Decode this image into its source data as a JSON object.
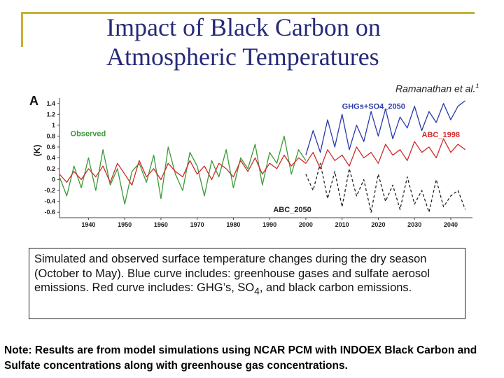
{
  "slide": {
    "title_line1": "Impact of Black Carbon on",
    "title_line2": "Atmospheric Temperatures",
    "credit": "Ramanathan et al.",
    "credit_sup": "1",
    "caption_part1": "Simulated and observed surface temperature changes during the dry season (October to May).  Blue curve includes: greenhouse gases and sulfate aerosol emissions. Red curve includes: GHG’s, SO",
    "caption_sub": "4",
    "caption_part2": ", and black carbon emissions.",
    "note": "Note: Results are from model simulations using NCAR PCM with INDOEX Black Carbon and Sulfate concentrations along with greenhouse gas concentrations."
  },
  "chart_data": {
    "type": "line",
    "panel_label": "A",
    "ylabel": "(K)",
    "xlim": [
      1932,
      2046
    ],
    "ylim": [
      -0.7,
      1.5
    ],
    "x_ticks": [
      1940,
      1950,
      1960,
      1970,
      1980,
      1990,
      2000,
      2010,
      2020,
      2030,
      2040
    ],
    "y_ticks": [
      1.4,
      1.2,
      1.0,
      0.8,
      0.6,
      0.4,
      0.2,
      0,
      -0.2,
      -0.4,
      -0.6
    ],
    "y_tick_labels": [
      "1.4",
      "1.2",
      "1",
      "0.8",
      "0.6",
      "0.4",
      "0.2",
      "0",
      "-0.2",
      "-0.4",
      "-0.6"
    ],
    "series": [
      {
        "name": "Observed",
        "color": "#3a9a35",
        "dash": "",
        "x": [
          1932,
          1934,
          1936,
          1938,
          1940,
          1942,
          1944,
          1946,
          1948,
          1950,
          1952,
          1954,
          1956,
          1958,
          1960,
          1962,
          1964,
          1966,
          1968,
          1970,
          1972,
          1974,
          1976,
          1978,
          1980,
          1982,
          1984,
          1986,
          1988,
          1990,
          1992,
          1994,
          1996,
          1998,
          2000
        ],
        "y": [
          0.05,
          -0.3,
          0.25,
          -0.15,
          0.4,
          -0.2,
          0.55,
          -0.1,
          0.2,
          -0.45,
          0.15,
          0.3,
          -0.05,
          0.45,
          -0.35,
          0.6,
          0.1,
          -0.2,
          0.5,
          0.25,
          -0.3,
          0.35,
          0.05,
          0.55,
          -0.15,
          0.4,
          0.2,
          0.65,
          -0.1,
          0.5,
          0.3,
          0.8,
          0.1,
          0.55,
          0.35
        ]
      },
      {
        "name": "ABC_1998",
        "color": "#d02a2a",
        "dash": "",
        "x": [
          1932,
          1934,
          1936,
          1938,
          1940,
          1942,
          1944,
          1946,
          1948,
          1950,
          1952,
          1954,
          1956,
          1958,
          1960,
          1962,
          1964,
          1966,
          1968,
          1970,
          1972,
          1974,
          1976,
          1978,
          1980,
          1982,
          1984,
          1986,
          1988,
          1990,
          1992,
          1994,
          1996,
          1998,
          2000,
          2002,
          2004,
          2006,
          2008,
          2010,
          2012,
          2014,
          2016,
          2018,
          2020,
          2022,
          2024,
          2026,
          2028,
          2030,
          2032,
          2034,
          2036,
          2038,
          2040,
          2042,
          2044
        ],
        "y": [
          0.1,
          -0.05,
          0.15,
          0.0,
          0.2,
          0.05,
          0.25,
          -0.05,
          0.3,
          0.1,
          -0.1,
          0.35,
          0.05,
          0.2,
          0.0,
          0.3,
          0.15,
          0.05,
          0.35,
          0.1,
          0.25,
          0.0,
          0.3,
          0.2,
          0.05,
          0.35,
          0.15,
          0.4,
          0.1,
          0.3,
          0.2,
          0.45,
          0.25,
          0.4,
          0.3,
          0.5,
          0.2,
          0.55,
          0.35,
          0.45,
          0.25,
          0.6,
          0.4,
          0.5,
          0.3,
          0.65,
          0.45,
          0.55,
          0.35,
          0.7,
          0.5,
          0.6,
          0.4,
          0.75,
          0.5,
          0.65,
          0.55
        ]
      },
      {
        "name": "GHGs+SO4_2050",
        "color": "#2a3aa8",
        "dash": "",
        "x": [
          2000,
          2002,
          2004,
          2006,
          2008,
          2010,
          2012,
          2014,
          2016,
          2018,
          2020,
          2022,
          2024,
          2026,
          2028,
          2030,
          2032,
          2034,
          2036,
          2038,
          2040,
          2042,
          2044
        ],
        "y": [
          0.45,
          0.9,
          0.5,
          1.1,
          0.6,
          1.2,
          0.55,
          1.0,
          0.7,
          1.25,
          0.8,
          1.3,
          0.75,
          1.15,
          0.95,
          1.35,
          0.9,
          1.25,
          1.05,
          1.4,
          1.1,
          1.35,
          1.45
        ]
      },
      {
        "name": "ABC_2050",
        "color": "#222222",
        "dash": "4,3",
        "x": [
          2000,
          2002,
          2004,
          2006,
          2008,
          2010,
          2012,
          2014,
          2016,
          2018,
          2020,
          2022,
          2024,
          2026,
          2028,
          2030,
          2032,
          2034,
          2036,
          2038,
          2040,
          2042,
          2044
        ],
        "y": [
          0.1,
          -0.2,
          0.3,
          -0.35,
          0.15,
          -0.5,
          0.2,
          -0.3,
          0.0,
          -0.6,
          0.1,
          -0.4,
          -0.1,
          -0.55,
          0.05,
          -0.45,
          -0.2,
          -0.6,
          0.0,
          -0.5,
          -0.3,
          -0.2,
          -0.55
        ]
      }
    ],
    "annotations": [
      {
        "text": "Observed",
        "color": "#3a9a35",
        "x": 1935,
        "y": 0.8
      },
      {
        "text": "GHGs+SO4_2050",
        "color": "#2a3aa8",
        "x": 2010,
        "y": 1.3
      },
      {
        "text": "ABC_1998",
        "color": "#d02a2a",
        "x": 2032,
        "y": 0.78
      },
      {
        "text": "ABC_2050",
        "color": "#222222",
        "x": 1991,
        "y": -0.6
      }
    ]
  }
}
